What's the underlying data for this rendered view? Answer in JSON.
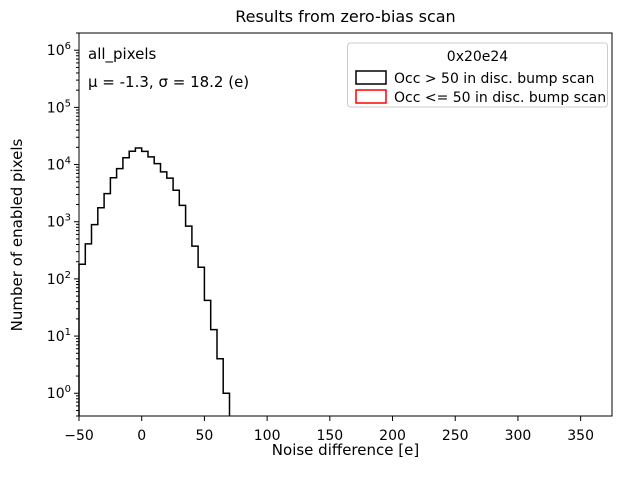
{
  "title": "Results from zero-bias scan",
  "axes": {
    "xlabel": "Noise difference [e]",
    "ylabel": "Number of enabled pixels"
  },
  "annotation": {
    "dataset": "all_pixels",
    "stats_line": "μ = -1.3, σ = 18.2 (e)"
  },
  "legend": {
    "title": "0x20e24",
    "entries": [
      {
        "label": "Occ > 50 in disc. bump scan",
        "color": "#000000"
      },
      {
        "label": "Occ <= 50 in disc. bump scan",
        "color": "#ff0000"
      }
    ]
  },
  "chart_data": {
    "type": "histogram-step",
    "title": "Results from zero-bias scan",
    "xlabel": "Noise difference [e]",
    "ylabel": "Number of enabled pixels",
    "yscale": "log",
    "xlim": [
      -50,
      375
    ],
    "ylim": [
      0.4,
      2000000
    ],
    "xticks": [
      -50,
      0,
      50,
      100,
      150,
      200,
      250,
      300,
      350
    ],
    "ytick_exponents": [
      0,
      1,
      2,
      3,
      4,
      5,
      6
    ],
    "legend_position": "upper right",
    "grid": false,
    "stats": {
      "mu": -1.3,
      "sigma": 18.2,
      "unit": "e"
    },
    "series": [
      {
        "name": "Occ > 50 in disc. bump scan",
        "color": "#000000",
        "bin_width": 5,
        "bin_edges": [
          -50,
          -45,
          -40,
          -35,
          -30,
          -25,
          -20,
          -15,
          -10,
          -5,
          0,
          5,
          10,
          15,
          20,
          25,
          30,
          35,
          40,
          45,
          50,
          55,
          60,
          65,
          70
        ],
        "counts": [
          180,
          410,
          890,
          1760,
          3100,
          5900,
          8500,
          13200,
          17100,
          19500,
          17000,
          13600,
          10400,
          7450,
          5800,
          3550,
          1930,
          840,
          375,
          160,
          42,
          13,
          4,
          1
        ]
      },
      {
        "name": "Occ <= 50 in disc. bump scan",
        "color": "#ff0000",
        "bin_edges": [],
        "counts": [],
        "visible": false
      }
    ]
  }
}
